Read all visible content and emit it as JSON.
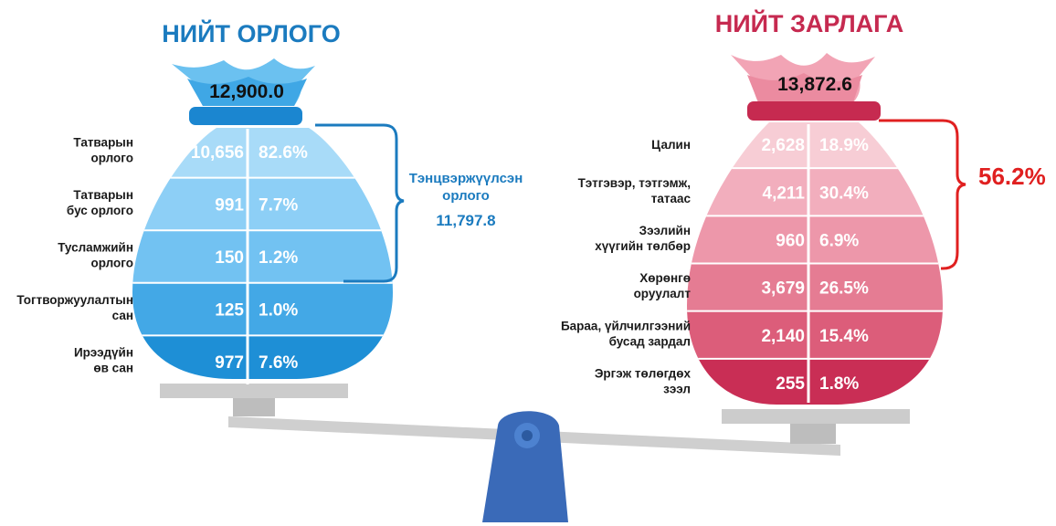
{
  "chart_data": [
    {
      "type": "bar",
      "title": "НИЙТ ОРЛОГО",
      "total": "12,900.0",
      "categories": [
        [
          "Татварын",
          "орлого"
        ],
        [
          "Татварын",
          "бус орлого"
        ],
        [
          "Тусламжийн",
          "орлого"
        ],
        [
          "Тогтворжуулалтын",
          "сан"
        ],
        [
          "Ирээдүйн",
          "өв сан"
        ]
      ],
      "values": [
        10656,
        991,
        150,
        125,
        977
      ],
      "values_label": [
        "10,656",
        "991",
        "150",
        "125",
        "977"
      ],
      "shares": [
        "82.6%",
        "7.7%",
        "1.2%",
        "1.0%",
        "7.6%"
      ],
      "bracket_label": [
        "Тэнцвэржүүлсэн",
        "орлого"
      ],
      "bracket_value": "11,797.8",
      "colors": [
        "#a8dbf8",
        "#8dcff6",
        "#72c2f2",
        "#43a8e6",
        "#1e8fd6"
      ],
      "accent": "#1b7bbf"
    },
    {
      "type": "bar",
      "title": "НИЙТ ЗАРЛАГА",
      "total": "13,872.6",
      "categories": [
        [
          "Цалин"
        ],
        [
          "Тэтгэвэр, тэтгэмж,",
          "татаас"
        ],
        [
          "Зээлийн",
          "хүүгийн төлбөр"
        ],
        [
          "Хөрөнгө",
          "оруулалт"
        ],
        [
          "Бараа, үйлчилгээний",
          "бусад зардал"
        ],
        [
          "Эргэж төлөгдөх",
          "зээл"
        ]
      ],
      "values": [
        2628,
        4211,
        960,
        3679,
        2140,
        255
      ],
      "values_label": [
        "2,628",
        "4,211",
        "960",
        "3,679",
        "2,140",
        "255"
      ],
      "shares": [
        "18.9%",
        "30.4%",
        "6.9%",
        "26.5%",
        "15.4%",
        "1.8%"
      ],
      "bracket_value": "56.2%",
      "colors": [
        "#f7cdd5",
        "#f2aebd",
        "#ed97aa",
        "#e57c93",
        "#dc5d7a",
        "#c92e55"
      ],
      "accent": "#c62a50"
    }
  ]
}
